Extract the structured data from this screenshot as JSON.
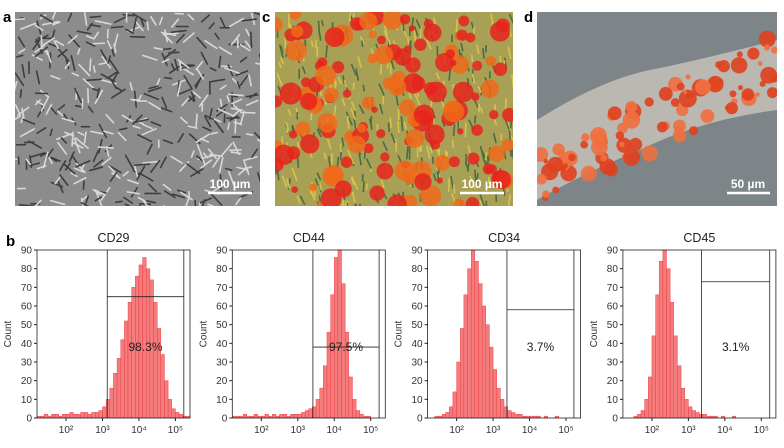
{
  "figure": {
    "panel_labels": [
      "a",
      "c",
      "d",
      "b"
    ],
    "scale_bars": [
      "100 µm",
      "100 µm",
      "50 µm"
    ]
  },
  "chart_data": [
    {
      "type": "histogram",
      "title": "CD29",
      "ylabel": "Count",
      "color": "#f47c7c",
      "log_x": true,
      "xlim": [
        16,
        251189
      ],
      "ylim": [
        0,
        90
      ],
      "yticks": [
        0,
        10,
        20,
        30,
        40,
        50,
        60,
        70,
        80,
        90
      ],
      "xticks": [
        {
          "value": 100,
          "label": "10²"
        },
        {
          "value": 1000,
          "label": "10³"
        },
        {
          "value": 10000,
          "label": "10⁴"
        },
        {
          "value": 100000,
          "label": "10⁵"
        }
      ],
      "bins": [
        16,
        20,
        25,
        32,
        40,
        50,
        63,
        79,
        100,
        126,
        158,
        200,
        251,
        316,
        398,
        501,
        631,
        794,
        1000,
        1259,
        1585,
        1995,
        2512,
        3162,
        3981,
        5012,
        6310,
        7943,
        10000,
        12589,
        15849,
        19953,
        25119,
        31623,
        39811,
        50119,
        63096,
        79433,
        100000,
        125893,
        158489,
        199526,
        251189
      ],
      "values": [
        1,
        1,
        2,
        1,
        2,
        2,
        1,
        2,
        2,
        3,
        2,
        2,
        3,
        3,
        2,
        3,
        3,
        4,
        6,
        10,
        16,
        24,
        32,
        42,
        52,
        62,
        70,
        76,
        82,
        86,
        80,
        74,
        62,
        48,
        34,
        20,
        10,
        5,
        3,
        2,
        1,
        1
      ],
      "gate": {
        "x": [
          1350,
          170000
        ],
        "y": 65
      },
      "gate_label": "98.3%"
    },
    {
      "type": "histogram",
      "title": "CD44",
      "ylabel": "Count",
      "color": "#f47c7c",
      "log_x": true,
      "xlim": [
        16,
        251189
      ],
      "ylim": [
        0,
        90
      ],
      "yticks": [
        0,
        10,
        20,
        30,
        40,
        50,
        60,
        70,
        80,
        90
      ],
      "xticks": [
        {
          "value": 100,
          "label": "10²"
        },
        {
          "value": 1000,
          "label": "10³"
        },
        {
          "value": 10000,
          "label": "10⁴"
        },
        {
          "value": 100000,
          "label": "10⁵"
        }
      ],
      "bins": [
        16,
        20,
        25,
        32,
        40,
        50,
        63,
        79,
        100,
        126,
        158,
        200,
        251,
        316,
        398,
        501,
        631,
        794,
        1000,
        1259,
        1585,
        1995,
        2512,
        3162,
        3981,
        5012,
        6310,
        7943,
        10000,
        12589,
        15849,
        19953,
        25119,
        31623,
        39811,
        50119,
        63096,
        79433,
        100000,
        125893,
        158489,
        199526,
        251189
      ],
      "values": [
        1,
        1,
        1,
        2,
        1,
        1,
        2,
        1,
        1,
        2,
        1,
        2,
        1,
        2,
        2,
        1,
        2,
        2,
        2,
        3,
        4,
        5,
        6,
        10,
        16,
        28,
        46,
        66,
        86,
        90,
        72,
        46,
        22,
        10,
        4,
        2,
        1,
        1,
        0,
        0,
        0,
        0
      ],
      "gate": {
        "x": [
          2600,
          170000
        ],
        "y": 38
      },
      "gate_label": "97.5%"
    },
    {
      "type": "histogram",
      "title": "CD34",
      "ylabel": "Count",
      "color": "#f47c7c",
      "log_x": true,
      "xlim": [
        16,
        251189
      ],
      "ylim": [
        0,
        90
      ],
      "yticks": [
        0,
        10,
        20,
        30,
        40,
        50,
        60,
        70,
        80,
        90
      ],
      "xticks": [
        {
          "value": 100,
          "label": "10²"
        },
        {
          "value": 1000,
          "label": "10³"
        },
        {
          "value": 10000,
          "label": "10⁴"
        },
        {
          "value": 100000,
          "label": "10⁵"
        }
      ],
      "bins": [
        16,
        20,
        25,
        32,
        40,
        50,
        63,
        79,
        100,
        126,
        158,
        200,
        251,
        316,
        398,
        501,
        631,
        794,
        1000,
        1259,
        1585,
        1995,
        2512,
        3162,
        3981,
        5012,
        6310,
        7943,
        10000,
        12589,
        15849,
        19953,
        25119,
        31623,
        39811,
        50119,
        63096,
        79433,
        100000,
        125893,
        158489,
        199526,
        251189
      ],
      "values": [
        0,
        0,
        1,
        1,
        2,
        3,
        6,
        14,
        30,
        48,
        66,
        80,
        90,
        84,
        72,
        60,
        50,
        38,
        26,
        16,
        10,
        6,
        4,
        3,
        2,
        2,
        1,
        1,
        1,
        1,
        1,
        0,
        1,
        0,
        0,
        1,
        0,
        0,
        0,
        0,
        0,
        0
      ],
      "gate": {
        "x": [
          2400,
          165000
        ],
        "y": 58
      },
      "gate_label": "3.7%"
    },
    {
      "type": "histogram",
      "title": "CD45",
      "ylabel": "Count",
      "color": "#f47c7c",
      "log_x": true,
      "xlim": [
        16,
        251189
      ],
      "ylim": [
        0,
        90
      ],
      "yticks": [
        0,
        10,
        20,
        30,
        40,
        50,
        60,
        70,
        80,
        90
      ],
      "xticks": [
        {
          "value": 100,
          "label": "10²"
        },
        {
          "value": 1000,
          "label": "10³"
        },
        {
          "value": 10000,
          "label": "10⁴"
        },
        {
          "value": 100000,
          "label": "10⁵"
        }
      ],
      "bins": [
        16,
        20,
        25,
        32,
        40,
        50,
        63,
        79,
        100,
        126,
        158,
        200,
        251,
        316,
        398,
        501,
        631,
        794,
        1000,
        1259,
        1585,
        1995,
        2512,
        3162,
        3981,
        5012,
        6310,
        7943,
        10000,
        12589,
        15849,
        19953,
        25119,
        31623,
        39811,
        50119,
        63096,
        79433,
        100000,
        125893,
        158489,
        199526,
        251189
      ],
      "values": [
        0,
        0,
        0,
        1,
        2,
        4,
        10,
        22,
        44,
        66,
        84,
        90,
        80,
        62,
        44,
        28,
        16,
        10,
        6,
        4,
        3,
        2,
        2,
        1,
        1,
        1,
        0,
        1,
        0,
        0,
        1,
        0,
        0,
        0,
        0,
        0,
        0,
        0,
        0,
        0,
        0,
        0
      ],
      "gate": {
        "x": [
          2300,
          170000
        ],
        "y": 73
      },
      "gate_label": "3.1%"
    }
  ]
}
